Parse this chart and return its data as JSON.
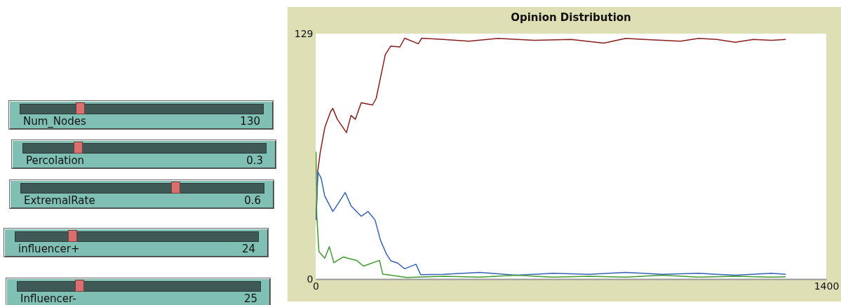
{
  "chart_data": [
    {
      "type": "other",
      "annotations": [
        "Num_Nodes",
        "130",
        "Percolation",
        "0.3",
        "ExtremalRate",
        "0.6",
        "influencer+",
        "24",
        "Influencer-",
        "25"
      ]
    },
    {
      "type": "line",
      "title": "Opinion Distribution",
      "xlim": [
        0,
        1400
      ],
      "ylim": [
        0,
        129
      ],
      "xticks": [
        0,
        1400
      ],
      "yticks": [
        0,
        129
      ],
      "grid": false,
      "series": [
        {
          "color": "#8b1c1c",
          "x": [
            1,
            6,
            12.5,
            25,
            41,
            47,
            59.5,
            84.5,
            97,
            109,
            125,
            156,
            166,
            178,
            191,
            206,
            231,
            244,
            281.5,
            291,
            350,
            420,
            500,
            600,
            700,
            790,
            850,
            900,
            1000,
            1050,
            1100,
            1150,
            1200,
            1250,
            1289
          ],
          "values": [
            31,
            57,
            66.5,
            79.6,
            88,
            89.7,
            84,
            77,
            86,
            84,
            92.7,
            91.5,
            95,
            106,
            118,
            122.5,
            122,
            126.6,
            123.7,
            126.6,
            126,
            125,
            126.5,
            125.5,
            126,
            124,
            126.5,
            126,
            125,
            126.5,
            126,
            124.5,
            126,
            125.5,
            126
          ]
        },
        {
          "color": "#3563b4",
          "x": [
            1,
            6,
            15,
            25,
            47,
            59.5,
            81,
            97,
            125,
            144,
            163,
            178,
            194,
            206,
            225,
            244,
            275,
            288,
            350,
            450,
            550,
            650,
            750,
            850,
            950,
            1050,
            1150,
            1250,
            1289
          ],
          "values": [
            31,
            56.4,
            53,
            43.6,
            35.5,
            39,
            45.5,
            38.5,
            33,
            35.5,
            31,
            20.3,
            13.2,
            9.6,
            8.4,
            5.4,
            7.8,
            2.3,
            2.5,
            3.5,
            2,
            3,
            2.5,
            3.5,
            2.5,
            3,
            2,
            3,
            2.5
          ]
        },
        {
          "color": "#3f9a2f",
          "x": [
            1,
            3,
            9,
            25,
            37.5,
            50,
            75,
            112.5,
            131,
            175,
            184,
            206,
            250,
            350,
            450,
            550,
            650,
            750,
            850,
            950,
            1050,
            1150,
            1250,
            1289
          ],
          "values": [
            67,
            33.5,
            14.5,
            11,
            17,
            8.6,
            11.6,
            9.8,
            6.8,
            9.8,
            2.6,
            2,
            0.8,
            1.5,
            1,
            2,
            1,
            1.5,
            1,
            2,
            1,
            1.5,
            1,
            1.2
          ]
        }
      ]
    }
  ]
}
